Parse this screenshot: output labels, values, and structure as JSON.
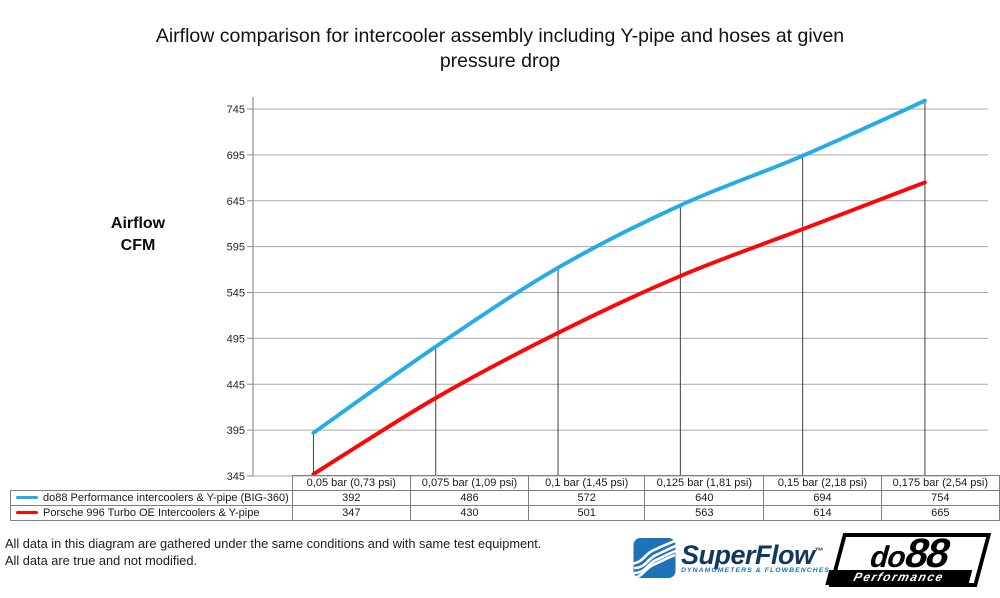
{
  "title": "Airflow comparison for intercooler assembly including Y-pipe and hoses at given pressure drop",
  "y_axis_title": {
    "line1": "Airflow",
    "line2": "CFM"
  },
  "chart_data": {
    "type": "line",
    "title": "Airflow comparison for intercooler assembly including Y-pipe and hoses at given pressure drop",
    "xlabel": "",
    "ylabel": "Airflow CFM",
    "categories": [
      "0,05 bar (0,73 psi)",
      "0,075 bar (1,09 psi)",
      "0,1 bar (1,45 psi)",
      "0,125 bar (1,81 psi)",
      "0,15 bar (2,18 psi)",
      "0,175 bar (2,54 psi)"
    ],
    "series": [
      {
        "name": "do88 Performance intercoolers & Y-pipe (BIG-360)",
        "color": "#25ACE8",
        "values": [
          392,
          486,
          572,
          640,
          694,
          754
        ]
      },
      {
        "name": "Porsche 996 Turbo OE Intercoolers & Y-pipe",
        "color": "#FB0707",
        "values": [
          347,
          430,
          501,
          563,
          614,
          665
        ]
      }
    ],
    "yticks": [
      345,
      395,
      445,
      495,
      545,
      595,
      645,
      695,
      745
    ],
    "ylim": [
      345,
      745
    ],
    "grid": true,
    "gridline_color": "#a9a9a9",
    "axis_color": "#8c8c8c",
    "dropline_color": "#404040",
    "legend_position": "table-left"
  },
  "footnote": {
    "line1": "All data in this diagram are gathered under the same conditions and with same test equipment.",
    "line2": "All data are true and not modified."
  },
  "logos": {
    "superflow": {
      "word": "SuperFlow",
      "tm": "™",
      "subtitle": "DYNAMOMETERS & FLOWBENCHES",
      "icon_color": "#1e72b8"
    },
    "do88": {
      "word_small": "do",
      "word_big": "88",
      "bar": "Performance"
    }
  }
}
